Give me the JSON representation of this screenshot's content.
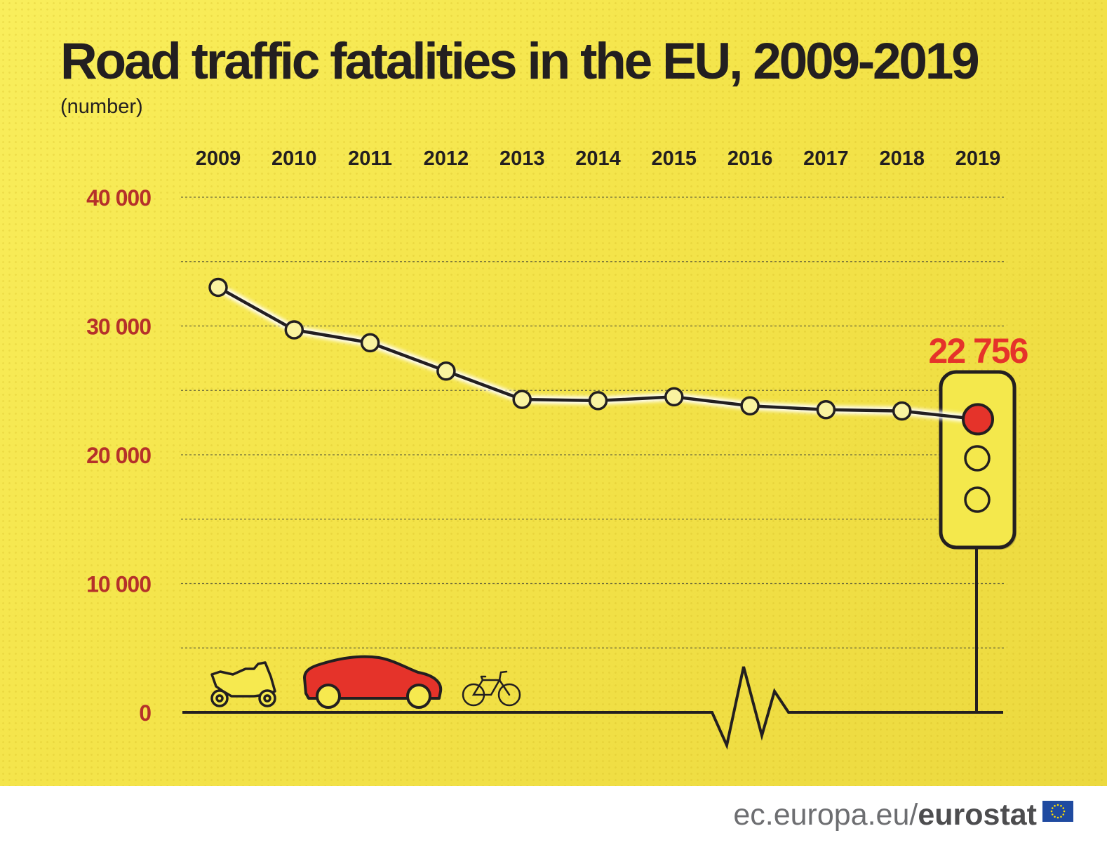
{
  "title": "Road traffic fatalities in the EU, 2009-2019",
  "subtitle": "(number)",
  "highlight_label": "22 756",
  "footer": {
    "url_prefix": "ec.europa.eu/",
    "url_brand": "eurostat"
  },
  "icons": [
    "motorcycle-icon",
    "car-icon",
    "bicycle-icon",
    "traffic-light-icon",
    "eu-flag-icon"
  ],
  "colors": {
    "background": "#f6e94f",
    "line": "#231f20",
    "axis_labels": "#b5312a",
    "highlight": "#e5332a"
  },
  "chart_data": {
    "type": "line",
    "title": "Road traffic fatalities in the EU, 2009-2019",
    "subtitle": "(number)",
    "categories": [
      "2009",
      "2010",
      "2011",
      "2012",
      "2013",
      "2014",
      "2015",
      "2016",
      "2017",
      "2018",
      "2019"
    ],
    "series": [
      {
        "values": [
          33000,
          29700,
          28700,
          26500,
          24300,
          24200,
          24500,
          23800,
          23500,
          23400,
          22756
        ]
      }
    ],
    "ylim": [
      0,
      40000
    ],
    "yticks": [
      0,
      10000,
      20000,
      30000,
      40000
    ],
    "ytick_labels": [
      "0",
      "10 000",
      "20 000",
      "30 000",
      "40 000"
    ],
    "grid": true,
    "xaxis_position": "top",
    "highlight": {
      "category": "2019",
      "value": 22756,
      "label": "22 756"
    }
  }
}
